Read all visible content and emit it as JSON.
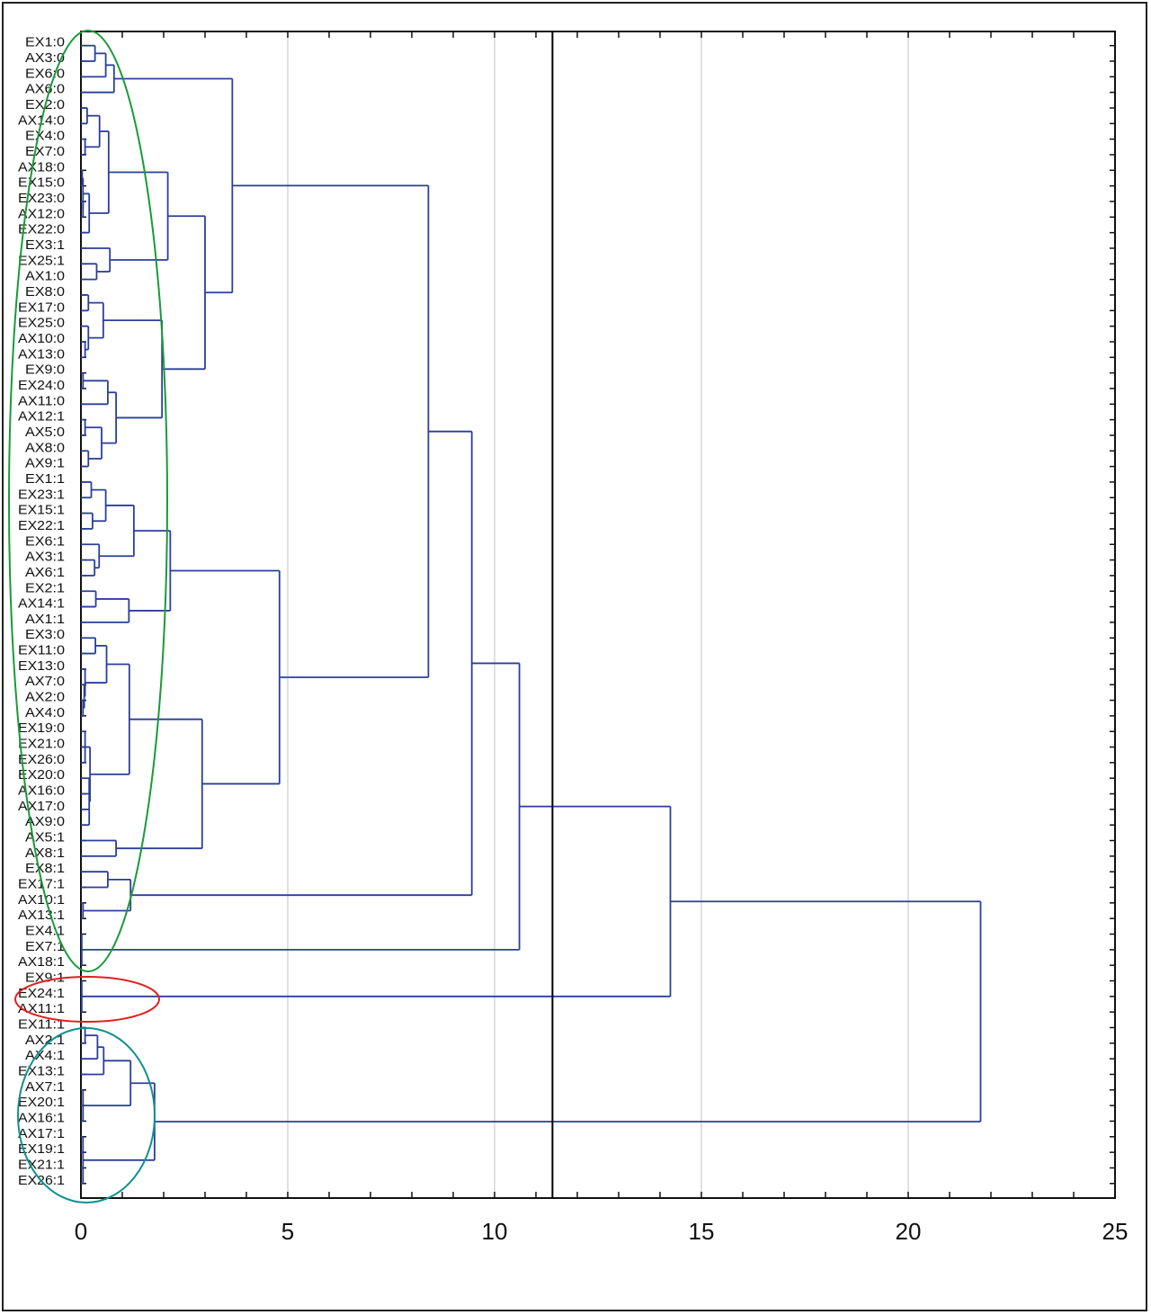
{
  "chart_data": {
    "type": "dendrogram",
    "title": "",
    "xlabel": "",
    "ylabel": "",
    "xlim": [
      0,
      25
    ],
    "x_ticks": [
      0,
      5,
      10,
      15,
      20,
      25
    ],
    "x_tick_labels": [
      "0",
      "5",
      "10",
      "15",
      "20",
      "25"
    ],
    "grid": "vertical lines at 5, 10, 15, 20",
    "cut_line_distance": 11.4,
    "colors": {
      "branches": "#2a3f9a",
      "cut_line": "#000000",
      "grid": "#cccccc",
      "group1_ellipse": "#1a9a3a",
      "group2_ellipse": "#e02020",
      "group3_ellipse": "#12908e"
    },
    "leaves": [
      "EX1:0",
      "AX3:0",
      "EX6:0",
      "AX6:0",
      "EX2:0",
      "AX14:0",
      "EX4:0",
      "EX7:0",
      "AX18:0",
      "EX15:0",
      "EX23:0",
      "AX12:0",
      "EX22:0",
      "EX3:1",
      "EX25:1",
      "AX1:0",
      "EX8:0",
      "EX17:0",
      "EX25:0",
      "AX10:0",
      "AX13:0",
      "EX9:0",
      "EX24:0",
      "AX11:0",
      "AX12:1",
      "AX5:0",
      "AX8:0",
      "AX9:1",
      "EX1:1",
      "EX23:1",
      "EX15:1",
      "EX22:1",
      "EX6:1",
      "AX3:1",
      "AX6:1",
      "EX2:1",
      "AX14:1",
      "AX1:1",
      "EX3:0",
      "EX11:0",
      "EX13:0",
      "AX7:0",
      "AX2:0",
      "AX4:0",
      "EX19:0",
      "EX21:0",
      "EX26:0",
      "EX20:0",
      "AX16:0",
      "AX17:0",
      "AX9:0",
      "AX5:1",
      "AX8:1",
      "EX8:1",
      "EX17:1",
      "AX10:1",
      "AX13:1",
      "EX4:1",
      "EX7:1",
      "AX18:1",
      "EX9:1",
      "EX24:1",
      "AX11:1",
      "EX11:1",
      "AX2:1",
      "AX4:1",
      "EX13:1",
      "AX7:1",
      "EX20:1",
      "AX16:1",
      "AX17:1",
      "EX19:1",
      "EX21:1",
      "EX26:1"
    ],
    "tree": {
      "h": 21.75,
      "c": [
        {
          "h": 14.25,
          "c": [
            {
              "h": 10.6,
              "c": [
                {
                  "h": 9.45,
                  "c": [
                    {
                      "h": 8.4,
                      "c": [
                        {
                          "h": 3.66,
                          "c": [
                            {
                              "h": 0.8,
                              "c": [
                                {
                                  "h": 0.6,
                                  "c": [
                                    {
                                      "h": 0.34,
                                      "c": [
                                        0,
                                        1
                                      ]
                                    },
                                    2
                                  ]
                                },
                                3
                              ]
                            },
                            {
                              "h": 3.0,
                              "c": [
                                {
                                  "h": 2.1,
                                  "c": [
                                    {
                                      "h": 0.67,
                                      "c": [
                                        {
                                          "h": 0.45,
                                          "c": [
                                            {
                                              "h": 0.15,
                                              "c": [
                                                4,
                                                5
                                              ]
                                            },
                                            {
                                              "h": 0.1,
                                              "c": [
                                                6,
                                                7
                                              ]
                                            }
                                          ]
                                        },
                                        {
                                          "h": 0.2,
                                          "c": [
                                            {
                                              "h": 0.05,
                                              "c": [
                                                {
                                                  "h": 0.03,
                                                  "c": [
                                                    8,
                                                    9
                                                  ]
                                                },
                                                {
                                                  "h": 0.05,
                                                  "c": [
                                                    10,
                                                    11
                                                  ]
                                                }
                                              ]
                                            },
                                            12
                                          ]
                                        }
                                      ]
                                    },
                                    {
                                      "h": 0.7,
                                      "c": [
                                        13,
                                        {
                                          "h": 0.38,
                                          "c": [
                                            14,
                                            15
                                          ]
                                        }
                                      ]
                                    }
                                  ]
                                },
                                {
                                  "h": 1.96,
                                  "c": [
                                    {
                                      "h": 0.54,
                                      "c": [
                                        {
                                          "h": 0.18,
                                          "c": [
                                            16,
                                            17
                                          ]
                                        },
                                        {
                                          "h": 0.18,
                                          "c": [
                                            18,
                                            {
                                              "h": 0.1,
                                              "c": [
                                                19,
                                                20
                                              ]
                                            }
                                          ]
                                        }
                                      ]
                                    },
                                    {
                                      "h": 0.85,
                                      "c": [
                                        {
                                          "h": 0.65,
                                          "c": [
                                            {
                                              "h": 0.05,
                                              "c": [
                                                21,
                                                22
                                              ]
                                            },
                                            23
                                          ]
                                        },
                                        {
                                          "h": 0.5,
                                          "c": [
                                            {
                                              "h": 0.1,
                                              "c": [
                                                24,
                                                25
                                              ]
                                            },
                                            {
                                              "h": 0.18,
                                              "c": [
                                                26,
                                                27
                                              ]
                                            }
                                          ]
                                        }
                                      ]
                                    }
                                  ]
                                }
                              ]
                            }
                          ]
                        },
                        {
                          "h": 4.8,
                          "c": [
                            {
                              "h": 2.16,
                              "c": [
                                {
                                  "h": 1.28,
                                  "c": [
                                    {
                                      "h": 0.6,
                                      "c": [
                                        {
                                          "h": 0.25,
                                          "c": [
                                            28,
                                            29
                                          ]
                                        },
                                        {
                                          "h": 0.28,
                                          "c": [
                                            30,
                                            31
                                          ]
                                        }
                                      ]
                                    },
                                    {
                                      "h": 0.44,
                                      "c": [
                                        32,
                                        {
                                          "h": 0.33,
                                          "c": [
                                            33,
                                            34
                                          ]
                                        }
                                      ]
                                    }
                                  ]
                                },
                                {
                                  "h": 1.16,
                                  "c": [
                                    {
                                      "h": 0.36,
                                      "c": [
                                        35,
                                        36
                                      ]
                                    },
                                    37
                                  ]
                                }
                              ]
                            },
                            {
                              "h": 2.93,
                              "c": [
                                {
                                  "h": 1.17,
                                  "c": [
                                    {
                                      "h": 0.62,
                                      "c": [
                                        {
                                          "h": 0.35,
                                          "c": [
                                            38,
                                            39
                                          ]
                                        },
                                        {
                                          "h": 0.1,
                                          "c": [
                                            40,
                                            {
                                              "h": 0.08,
                                              "c": [
                                                41,
                                                {
                                                  "h": 0.05,
                                                  "c": [
                                                    42,
                                                    43
                                                  ]
                                                }
                                              ]
                                            }
                                          ]
                                        }
                                      ]
                                    },
                                    {
                                      "h": 0.22,
                                      "c": [
                                        {
                                          "h": 0.1,
                                          "c": [
                                            44,
                                            45,
                                            46
                                          ]
                                        },
                                        {
                                          "h": 0.2,
                                          "c": [
                                            47,
                                            48,
                                            49,
                                            50
                                          ]
                                        }
                                      ]
                                    }
                                  ]
                                },
                                {
                                  "h": 0.85,
                                  "c": [
                                    51,
                                    52
                                  ]
                                }
                              ]
                            }
                          ]
                        }
                      ]
                    },
                    {
                      "h": 1.2,
                      "c": [
                        {
                          "h": 0.65,
                          "c": [
                            53,
                            54
                          ]
                        },
                        {
                          "h": 0.05,
                          "c": [
                            55,
                            56
                          ]
                        }
                      ]
                    }
                  ]
                },
                {
                  "h": 0.02,
                  "c": [
                    57,
                    58,
                    59
                  ]
                }
              ]
            },
            {
              "h": 0.02,
              "c": [
                60,
                61,
                62
              ]
            }
          ]
        },
        {
          "h": 1.78,
          "c": [
            {
              "h": 1.2,
              "c": [
                {
                  "h": 0.55,
                  "c": [
                    {
                      "h": 0.4,
                      "c": [
                        {
                          "h": 0.1,
                          "c": [
                            63,
                            64
                          ]
                        },
                        65
                      ]
                    },
                    66
                  ]
                },
                {
                  "h": 0.05,
                  "c": [
                    67,
                    68,
                    69
                  ]
                }
              ]
            },
            {
              "h": 0.05,
              "c": [
                70,
                71,
                72,
                73
              ]
            }
          ]
        }
      ]
    }
  }
}
